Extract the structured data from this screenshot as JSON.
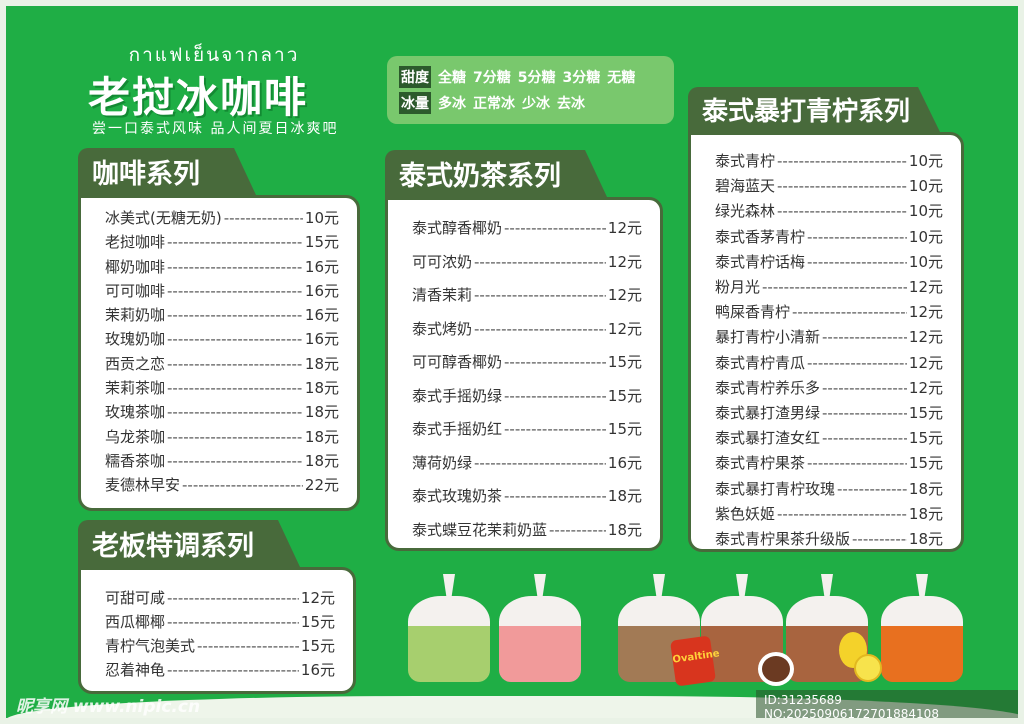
{
  "header": {
    "thai_text": "กาแฟเย็นจากลาว",
    "brand": "老挝冰咖啡",
    "slogan": "尝一口泰式风味 品人间夏日冰爽吧"
  },
  "options": {
    "sweetness_label": "甜度",
    "sweetness": [
      "全糖",
      "7分糖",
      "5分糖",
      "3分糖",
      "无糖"
    ],
    "ice_label": "冰量",
    "ice": [
      "多冰",
      "正常冰",
      "少冰",
      "去冰"
    ]
  },
  "coffee": {
    "title": "咖啡系列",
    "items": [
      {
        "name": "冰美式(无糖无奶)",
        "price": "10元"
      },
      {
        "name": "老挝咖啡",
        "price": "15元"
      },
      {
        "name": "椰奶咖啡",
        "price": "16元"
      },
      {
        "name": "可可咖啡",
        "price": "16元"
      },
      {
        "name": "茉莉奶咖",
        "price": "16元"
      },
      {
        "name": "玫瑰奶咖",
        "price": "16元"
      },
      {
        "name": "西贡之恋",
        "price": "18元"
      },
      {
        "name": "茉莉茶咖",
        "price": "18元"
      },
      {
        "name": "玫瑰茶咖",
        "price": "18元"
      },
      {
        "name": "乌龙茶咖",
        "price": "18元"
      },
      {
        "name": "糯香茶咖",
        "price": "18元"
      },
      {
        "name": "麦德林早安",
        "price": "22元"
      }
    ]
  },
  "boss": {
    "title": "老板特调系列",
    "items": [
      {
        "name": "可甜可咸",
        "price": "12元"
      },
      {
        "name": "西瓜椰椰",
        "price": "15元"
      },
      {
        "name": "青柠气泡美式",
        "price": "15元"
      },
      {
        "name": "忍着神龟",
        "price": "16元"
      }
    ]
  },
  "milktea": {
    "title": "泰式奶茶系列",
    "items": [
      {
        "name": "泰式醇香椰奶",
        "price": "12元"
      },
      {
        "name": "可可浓奶",
        "price": "12元"
      },
      {
        "name": "清香茉莉",
        "price": "12元"
      },
      {
        "name": "泰式烤奶",
        "price": "12元"
      },
      {
        "name": "可可醇香椰奶",
        "price": "15元"
      },
      {
        "name": "泰式手摇奶绿",
        "price": "15元"
      },
      {
        "name": "泰式手摇奶红",
        "price": "15元"
      },
      {
        "name": "薄荷奶绿",
        "price": "16元"
      },
      {
        "name": "泰式玫瑰奶茶",
        "price": "18元"
      },
      {
        "name": "泰式蝶豆花茉莉奶蓝",
        "price": "18元"
      }
    ]
  },
  "lime": {
    "title": "泰式暴打青柠系列",
    "items": [
      {
        "name": "泰式青柠",
        "price": "10元"
      },
      {
        "name": "碧海蓝天",
        "price": "10元"
      },
      {
        "name": "绿光森林",
        "price": "10元"
      },
      {
        "name": "泰式香茅青柠",
        "price": "10元"
      },
      {
        "name": "泰式青柠话梅",
        "price": "10元"
      },
      {
        "name": "粉月光",
        "price": "12元"
      },
      {
        "name": "鸭屎香青柠",
        "price": "12元"
      },
      {
        "name": "暴打青柠小清新",
        "price": "12元"
      },
      {
        "name": "泰式青柠青瓜",
        "price": "12元"
      },
      {
        "name": "泰式青柠养乐多",
        "price": "12元"
      },
      {
        "name": "泰式暴打渣男绿",
        "price": "15元"
      },
      {
        "name": "泰式暴打渣女红",
        "price": "15元"
      },
      {
        "name": "泰式青柠果茶",
        "price": "15元"
      },
      {
        "name": "泰式暴打青柠玫瑰",
        "price": "18元"
      },
      {
        "name": "紫色妖姬",
        "price": "18元"
      },
      {
        "name": "泰式青柠果茶升级版",
        "price": "18元"
      }
    ]
  },
  "decor": {
    "can_logo": "Ovaltine",
    "bag_colors": [
      "#a7cf6e",
      "#f19a9a",
      "#a27a55",
      "#a8643f",
      "#a8643f",
      "#e8701f"
    ]
  },
  "watermark": {
    "site": "昵享网 www.nipic.cn",
    "id": "ID:31235689 NO:20250906172701884108"
  },
  "colors": {
    "background": "#1fae45",
    "panel_border": "#486a3b",
    "options_bg": "#79c86d"
  }
}
